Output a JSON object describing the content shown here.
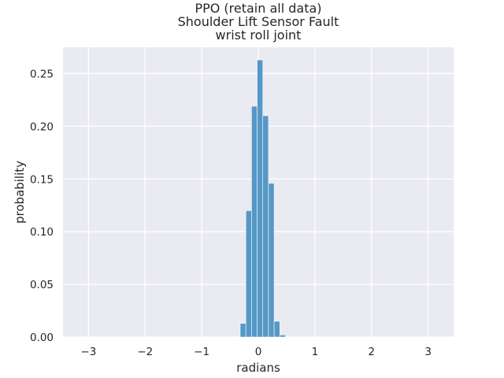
{
  "chart_data": {
    "type": "bar",
    "title_lines": [
      "PPO (retain all data)",
      "Shoulder Lift Sensor Fault",
      "wrist roll joint"
    ],
    "xlabel": "radians",
    "ylabel": "probability",
    "xlim": [
      -3.45,
      3.45
    ],
    "ylim": [
      0,
      0.275
    ],
    "xticks": [
      -3,
      -2,
      -1,
      0,
      1,
      2,
      3
    ],
    "xtick_labels": [
      "−3",
      "−2",
      "−1",
      "0",
      "1",
      "2",
      "3"
    ],
    "yticks": [
      0.0,
      0.05,
      0.1,
      0.15,
      0.2,
      0.25
    ],
    "ytick_labels": [
      "0.00",
      "0.05",
      "0.10",
      "0.15",
      "0.20",
      "0.25"
    ],
    "bin_width": 0.1,
    "bin_starts": [
      -0.32,
      -0.22,
      -0.12,
      -0.02,
      0.08,
      0.18,
      0.28,
      0.38
    ],
    "values": [
      0.013,
      0.12,
      0.219,
      0.263,
      0.21,
      0.146,
      0.015,
      0.002
    ],
    "bar_color": "#5698c6",
    "grid": true,
    "background": "#eaeaf2"
  }
}
